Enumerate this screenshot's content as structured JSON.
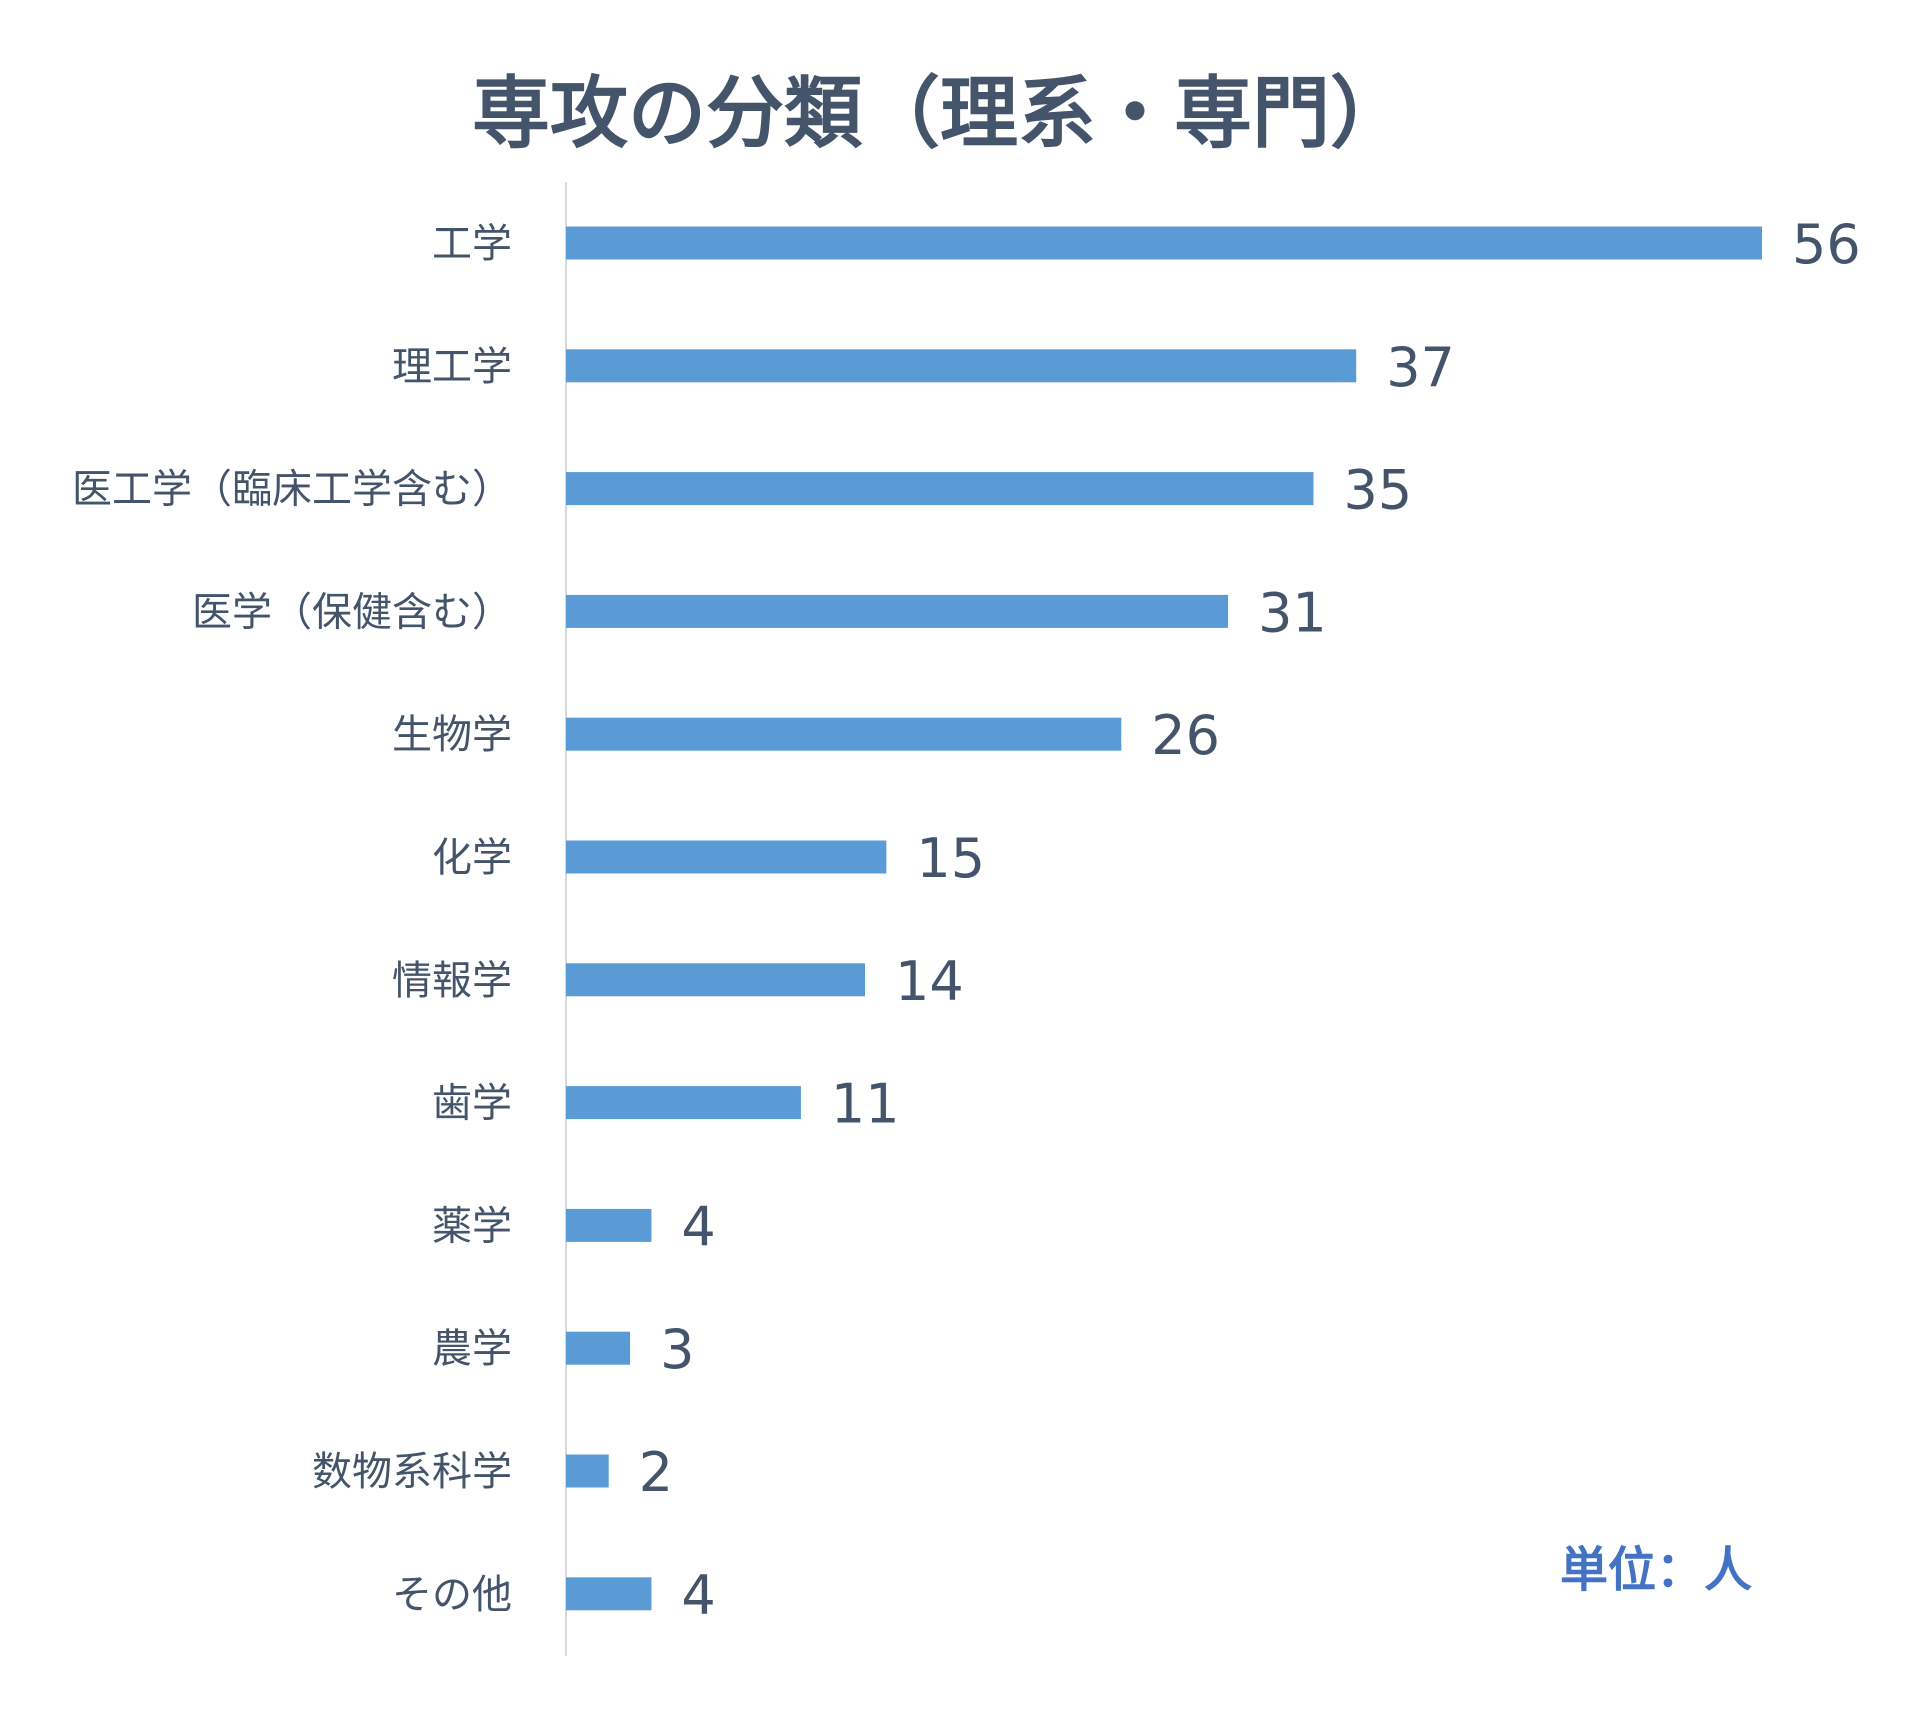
{
  "chart_data": {
    "type": "bar",
    "orientation": "horizontal",
    "title": "専攻の分類（理系・専門）",
    "unit_note": "単位：人",
    "categories": [
      "工学",
      "理工学",
      "医工学（臨床工学含む）",
      "医学（保健含む）",
      "生物学",
      "化学",
      "情報学",
      "歯学",
      "薬学",
      "農学",
      "数物系科学",
      "その他"
    ],
    "values": [
      56,
      37,
      35,
      31,
      26,
      15,
      14,
      11,
      4,
      3,
      2,
      4
    ],
    "xlim": [
      0,
      56
    ],
    "grid": false,
    "legend": "none",
    "colors": {
      "bar": "#5B9BD5",
      "text": "#44546A",
      "axis": "#D9D9D9",
      "unit": "#4472C4"
    }
  }
}
